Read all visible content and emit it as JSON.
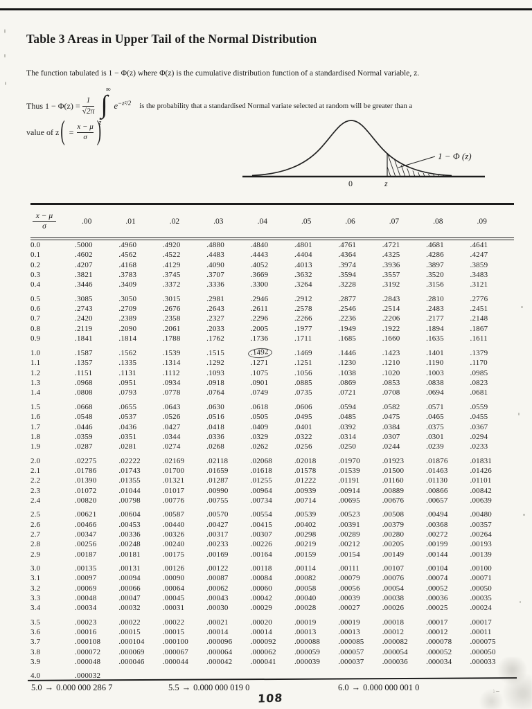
{
  "meta": {
    "paper_color": "#f7f6f1",
    "ink_color": "#1b1b1b"
  },
  "page": {
    "title": "Table 3  Areas in Upper Tail of the Normal Distribution",
    "intro": "The function tabulated is 1 − Φ(z) where Φ(z) is the cumulative distribution function of a standardised Normal variable, z.",
    "page_number": "108"
  },
  "formula": {
    "prefix": "Thus  1 − Φ(z) =",
    "frac_num": "1",
    "frac_den": "√2π",
    "int_upper": "∞",
    "int_sign": "∫",
    "int_lower": "z",
    "integrand": "e",
    "exponent": "−z²/2",
    "suffix": "is the probability that a standardised Normal variate selected at random will be greater than a"
  },
  "value_line": {
    "prefix": "value of z",
    "open": "(",
    "eq": "=",
    "num": "x − μ",
    "den": "σ",
    "close": ")"
  },
  "diagram": {
    "tail_label": "1 − Φ (z)",
    "axis_zero": "0",
    "axis_z": "z"
  },
  "table": {
    "corner_num": "x − μ",
    "corner_den": "σ",
    "col_headers": [
      ".00",
      ".01",
      ".02",
      ".03",
      ".04",
      ".05",
      ".06",
      ".07",
      ".08",
      ".09"
    ],
    "circled": {
      "group": 2,
      "row": 0,
      "col": 4
    },
    "groups": [
      [
        {
          "z": "0.0",
          "values": [
            ".5000",
            ".4960",
            ".4920",
            ".4880",
            ".4840",
            ".4801",
            ".4761",
            ".4721",
            ".4681",
            ".4641"
          ]
        },
        {
          "z": "0.1",
          "values": [
            ".4602",
            ".4562",
            ".4522",
            ".4483",
            ".4443",
            ".4404",
            ".4364",
            ".4325",
            ".4286",
            ".4247"
          ]
        },
        {
          "z": "0.2",
          "values": [
            ".4207",
            ".4168",
            ".4129",
            ".4090",
            ".4052",
            ".4013",
            ".3974",
            ".3936",
            ".3897",
            ".3859"
          ]
        },
        {
          "z": "0.3",
          "values": [
            ".3821",
            ".3783",
            ".3745",
            ".3707",
            ".3669",
            ".3632",
            ".3594",
            ".3557",
            ".3520",
            ".3483"
          ]
        },
        {
          "z": "0.4",
          "values": [
            ".3446",
            ".3409",
            ".3372",
            ".3336",
            ".3300",
            ".3264",
            ".3228",
            ".3192",
            ".3156",
            ".3121"
          ]
        }
      ],
      [
        {
          "z": "0.5",
          "values": [
            ".3085",
            ".3050",
            ".3015",
            ".2981",
            ".2946",
            ".2912",
            ".2877",
            ".2843",
            ".2810",
            ".2776"
          ]
        },
        {
          "z": "0.6",
          "values": [
            ".2743",
            ".2709",
            ".2676",
            ".2643",
            ".2611",
            ".2578",
            ".2546",
            ".2514",
            ".2483",
            ".2451"
          ]
        },
        {
          "z": "0.7",
          "values": [
            ".2420",
            ".2389",
            ".2358",
            ".2327",
            ".2296",
            ".2266",
            ".2236",
            ".2206",
            ".2177",
            ".2148"
          ]
        },
        {
          "z": "0.8",
          "values": [
            ".2119",
            ".2090",
            ".2061",
            ".2033",
            ".2005",
            ".1977",
            ".1949",
            ".1922",
            ".1894",
            ".1867"
          ]
        },
        {
          "z": "0.9",
          "values": [
            ".1841",
            ".1814",
            ".1788",
            ".1762",
            ".1736",
            ".1711",
            ".1685",
            ".1660",
            ".1635",
            ".1611"
          ]
        }
      ],
      [
        {
          "z": "1.0",
          "values": [
            ".1587",
            ".1562",
            ".1539",
            ".1515",
            ".1492",
            ".1469",
            ".1446",
            ".1423",
            ".1401",
            ".1379"
          ]
        },
        {
          "z": "1.1",
          "values": [
            ".1357",
            ".1335",
            ".1314",
            ".1292",
            ".1271",
            ".1251",
            ".1230",
            ".1210",
            ".1190",
            ".1170"
          ]
        },
        {
          "z": "1.2",
          "values": [
            ".1151",
            ".1131",
            ".1112",
            ".1093",
            ".1075",
            ".1056",
            ".1038",
            ".1020",
            ".1003",
            ".0985"
          ]
        },
        {
          "z": "1.3",
          "values": [
            ".0968",
            ".0951",
            ".0934",
            ".0918",
            ".0901",
            ".0885",
            ".0869",
            ".0853",
            ".0838",
            ".0823"
          ]
        },
        {
          "z": "1.4",
          "values": [
            ".0808",
            ".0793",
            ".0778",
            ".0764",
            ".0749",
            ".0735",
            ".0721",
            ".0708",
            ".0694",
            ".0681"
          ]
        }
      ],
      [
        {
          "z": "1.5",
          "values": [
            ".0668",
            ".0655",
            ".0643",
            ".0630",
            ".0618",
            ".0606",
            ".0594",
            ".0582",
            ".0571",
            ".0559"
          ]
        },
        {
          "z": "1.6",
          "values": [
            ".0548",
            ".0537",
            ".0526",
            ".0516",
            ".0505",
            ".0495",
            ".0485",
            ".0475",
            ".0465",
            ".0455"
          ]
        },
        {
          "z": "1.7",
          "values": [
            ".0446",
            ".0436",
            ".0427",
            ".0418",
            ".0409",
            ".0401",
            ".0392",
            ".0384",
            ".0375",
            ".0367"
          ]
        },
        {
          "z": "1.8",
          "values": [
            ".0359",
            ".0351",
            ".0344",
            ".0336",
            ".0329",
            ".0322",
            ".0314",
            ".0307",
            ".0301",
            ".0294"
          ]
        },
        {
          "z": "1.9",
          "values": [
            ".0287",
            ".0281",
            ".0274",
            ".0268",
            ".0262",
            ".0256",
            ".0250",
            ".0244",
            ".0239",
            ".0233"
          ]
        }
      ],
      [
        {
          "z": "2.0",
          "values": [
            ".02275",
            ".02222",
            ".02169",
            ".02118",
            ".02068",
            ".02018",
            ".01970",
            ".01923",
            ".01876",
            ".01831"
          ]
        },
        {
          "z": "2.1",
          "values": [
            ".01786",
            ".01743",
            ".01700",
            ".01659",
            ".01618",
            ".01578",
            ".01539",
            ".01500",
            ".01463",
            ".01426"
          ]
        },
        {
          "z": "2.2",
          "values": [
            ".01390",
            ".01355",
            ".01321",
            ".01287",
            ".01255",
            ".01222",
            ".01191",
            ".01160",
            ".01130",
            ".01101"
          ]
        },
        {
          "z": "2.3",
          "values": [
            ".01072",
            ".01044",
            ".01017",
            ".00990",
            ".00964",
            ".00939",
            ".00914",
            ".00889",
            ".00866",
            ".00842"
          ]
        },
        {
          "z": "2.4",
          "values": [
            ".00820",
            ".00798",
            ".00776",
            ".00755",
            ".00734",
            ".00714",
            ".00695",
            ".00676",
            ".00657",
            ".00639"
          ]
        }
      ],
      [
        {
          "z": "2.5",
          "values": [
            ".00621",
            ".00604",
            ".00587",
            ".00570",
            ".00554",
            ".00539",
            ".00523",
            ".00508",
            ".00494",
            ".00480"
          ]
        },
        {
          "z": "2.6",
          "values": [
            ".00466",
            ".00453",
            ".00440",
            ".00427",
            ".00415",
            ".00402",
            ".00391",
            ".00379",
            ".00368",
            ".00357"
          ]
        },
        {
          "z": "2.7",
          "values": [
            ".00347",
            ".00336",
            ".00326",
            ".00317",
            ".00307",
            ".00298",
            ".00289",
            ".00280",
            ".00272",
            ".00264"
          ]
        },
        {
          "z": "2.8",
          "values": [
            ".00256",
            ".00248",
            ".00240",
            ".00233",
            ".00226",
            ".00219",
            ".00212",
            ".00205",
            ".00199",
            ".00193"
          ]
        },
        {
          "z": "2.9",
          "values": [
            ".00187",
            ".00181",
            ".00175",
            ".00169",
            ".00164",
            ".00159",
            ".00154",
            ".00149",
            ".00144",
            ".00139"
          ]
        }
      ],
      [
        {
          "z": "3.0",
          "values": [
            ".00135",
            ".00131",
            ".00126",
            ".00122",
            ".00118",
            ".00114",
            ".00111",
            ".00107",
            ".00104",
            ".00100"
          ]
        },
        {
          "z": "3.1",
          "values": [
            ".00097",
            ".00094",
            ".00090",
            ".00087",
            ".00084",
            ".00082",
            ".00079",
            ".00076",
            ".00074",
            ".00071"
          ]
        },
        {
          "z": "3.2",
          "values": [
            ".00069",
            ".00066",
            ".00064",
            ".00062",
            ".00060",
            ".00058",
            ".00056",
            ".00054",
            ".00052",
            ".00050"
          ]
        },
        {
          "z": "3.3",
          "values": [
            ".00048",
            ".00047",
            ".00045",
            ".00043",
            ".00042",
            ".00040",
            ".00039",
            ".00038",
            ".00036",
            ".00035"
          ]
        },
        {
          "z": "3.4",
          "values": [
            ".00034",
            ".00032",
            ".00031",
            ".00030",
            ".00029",
            ".00028",
            ".00027",
            ".00026",
            ".00025",
            ".00024"
          ]
        }
      ],
      [
        {
          "z": "3.5",
          "values": [
            ".00023",
            ".00022",
            ".00022",
            ".00021",
            ".00020",
            ".00019",
            ".00019",
            ".00018",
            ".00017",
            ".00017"
          ]
        },
        {
          "z": "3.6",
          "values": [
            ".00016",
            ".00015",
            ".00015",
            ".00014",
            ".00014",
            ".00013",
            ".00013",
            ".00012",
            ".00012",
            ".00011"
          ]
        },
        {
          "z": "3.7",
          "values": [
            ".000108",
            ".000104",
            ".000100",
            ".000096",
            ".000092",
            ".000088",
            ".000085",
            ".000082",
            ".000078",
            ".000075"
          ]
        },
        {
          "z": "3.8",
          "values": [
            ".000072",
            ".000069",
            ".000067",
            ".000064",
            ".000062",
            ".000059",
            ".000057",
            ".000054",
            ".000052",
            ".000050"
          ]
        },
        {
          "z": "3.9",
          "values": [
            ".000048",
            ".000046",
            ".000044",
            ".000042",
            ".000041",
            ".000039",
            ".000037",
            ".000036",
            ".000034",
            ".000033"
          ]
        }
      ]
    ],
    "last_row": {
      "z": "4.0",
      "values": [
        ".000032"
      ]
    }
  },
  "footer": {
    "arrow": "→",
    "entries": [
      {
        "z": "5.0",
        "value": "0.000 000 286 7"
      },
      {
        "z": "5.5",
        "value": "0.000 000 019 0"
      },
      {
        "z": "6.0",
        "value": "0.000 000 001 0"
      }
    ]
  }
}
